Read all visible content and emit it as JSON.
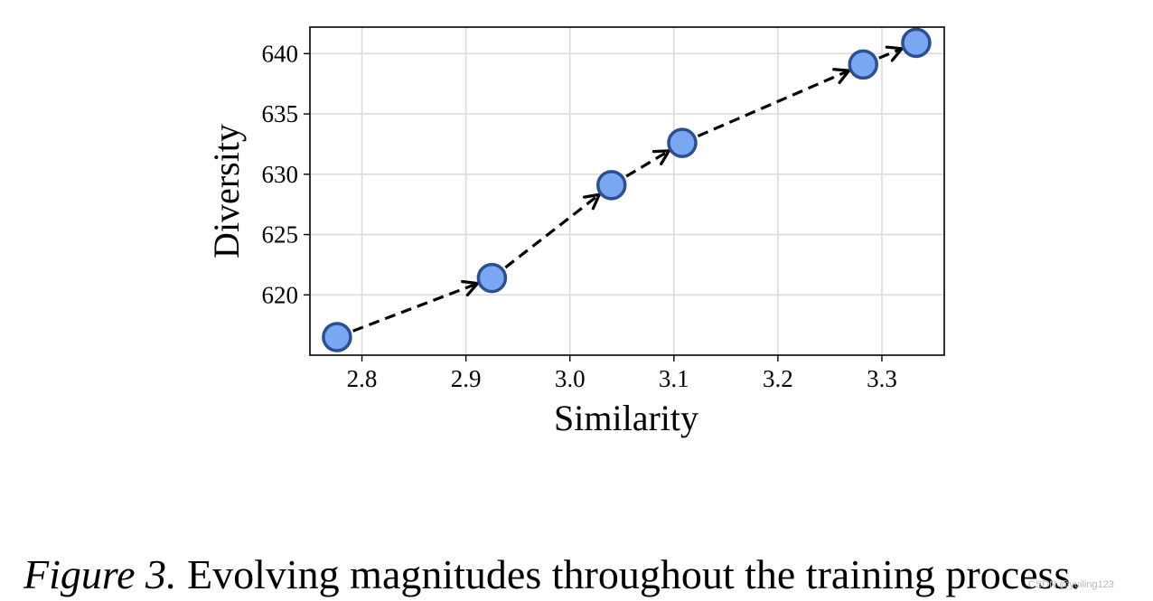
{
  "chart_data": {
    "type": "line",
    "xlabel": "Similarity",
    "ylabel": "Diversity",
    "xlim": [
      2.75,
      3.36
    ],
    "ylim": [
      615,
      642.2
    ],
    "x_ticks": [
      2.8,
      2.9,
      3.0,
      3.1,
      3.2,
      3.3
    ],
    "x_tick_labels": [
      "2.8",
      "2.9",
      "3.0",
      "3.1",
      "3.2",
      "3.3"
    ],
    "y_ticks": [
      620,
      625,
      630,
      635,
      640
    ],
    "y_tick_labels": [
      "620",
      "625",
      "630",
      "635",
      "640"
    ],
    "grid": true,
    "series": [
      {
        "x": [
          2.776,
          2.925,
          3.04,
          3.108,
          3.282,
          3.333
        ],
        "y": [
          616.5,
          621.4,
          629.1,
          632.6,
          639.1,
          640.9
        ],
        "line_style": "dashed",
        "arrows": true,
        "marker": "circle",
        "marker_color": "#7aa7f1",
        "marker_edge_color": "#2c4f91"
      }
    ]
  },
  "caption": {
    "label": "Figure 3.",
    "text": " Evolving magnitudes throughout the training process."
  },
  "watermark": "CSDN @yuiling123"
}
